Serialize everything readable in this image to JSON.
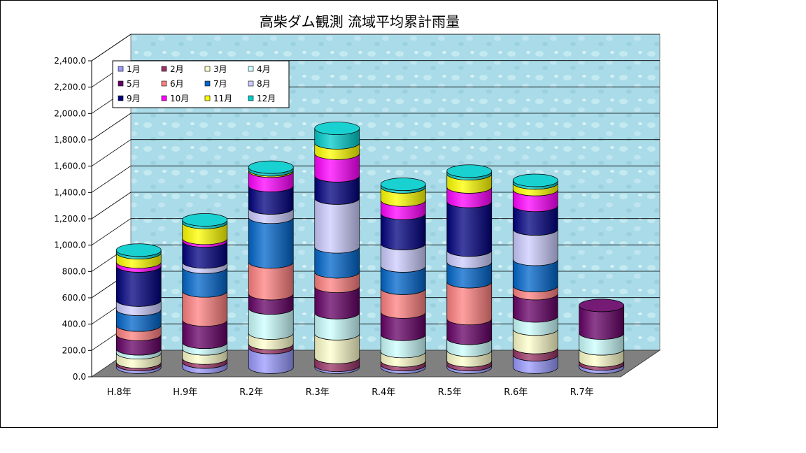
{
  "chart_data": {
    "type": "bar",
    "stacked": true,
    "style": "3d-cylinder",
    "title": "高柴ダム観測  流域平均累計雨量",
    "xlabel": "",
    "ylabel": "",
    "ylim": [
      0,
      2400
    ],
    "yticks": [
      "0.0",
      "200.0",
      "400.0",
      "600.0",
      "800.0",
      "1,000.0",
      "1,200.0",
      "1,400.0",
      "1,600.0",
      "1,800.0",
      "2,000.0",
      "2,200.0",
      "2,400.0"
    ],
    "grid": true,
    "legend_position": "top-left",
    "categories": [
      "H.8年",
      "H.9年",
      "R.2年",
      "R.3年",
      "R.4年",
      "R.5年",
      "R.6年",
      "R.7年"
    ],
    "series": [
      {
        "name": "1月",
        "color": "#9999ff",
        "values": [
          20,
          40,
          150,
          15,
          20,
          20,
          95,
          25
        ]
      },
      {
        "name": "2月",
        "color": "#993366",
        "values": [
          20,
          30,
          30,
          60,
          30,
          30,
          55,
          25
        ]
      },
      {
        "name": "3月",
        "color": "#ffffcc",
        "values": [
          70,
          70,
          80,
          180,
          70,
          80,
          140,
          90
        ]
      },
      {
        "name": "4月",
        "color": "#ccffff",
        "values": [
          30,
          50,
          190,
          160,
          130,
          90,
          100,
          120
        ]
      },
      {
        "name": "5月",
        "color": "#660066",
        "values": [
          110,
          170,
          110,
          200,
          170,
          150,
          170,
          210
        ]
      },
      {
        "name": "6月",
        "color": "#ff8080",
        "values": [
          70,
          220,
          240,
          110,
          180,
          280,
          60,
          0
        ]
      },
      {
        "name": "7月",
        "color": "#0066cc",
        "values": [
          120,
          180,
          340,
          190,
          170,
          150,
          200,
          0
        ]
      },
      {
        "name": "8月",
        "color": "#ccccff",
        "values": [
          70,
          40,
          70,
          370,
          170,
          90,
          230,
          0
        ]
      },
      {
        "name": "9月",
        "color": "#000080",
        "values": [
          260,
          160,
          170,
          170,
          230,
          370,
          180,
          0
        ]
      },
      {
        "name": "10月",
        "color": "#ff00ff",
        "values": [
          30,
          20,
          110,
          170,
          100,
          110,
          120,
          0
        ]
      },
      {
        "name": "11月",
        "color": "#ffff00",
        "values": [
          70,
          120,
          10,
          80,
          100,
          100,
          50,
          0
        ]
      },
      {
        "name": "12月",
        "color": "#00cccc",
        "values": [
          20,
          20,
          20,
          110,
          20,
          20,
          20,
          0
        ]
      }
    ]
  }
}
